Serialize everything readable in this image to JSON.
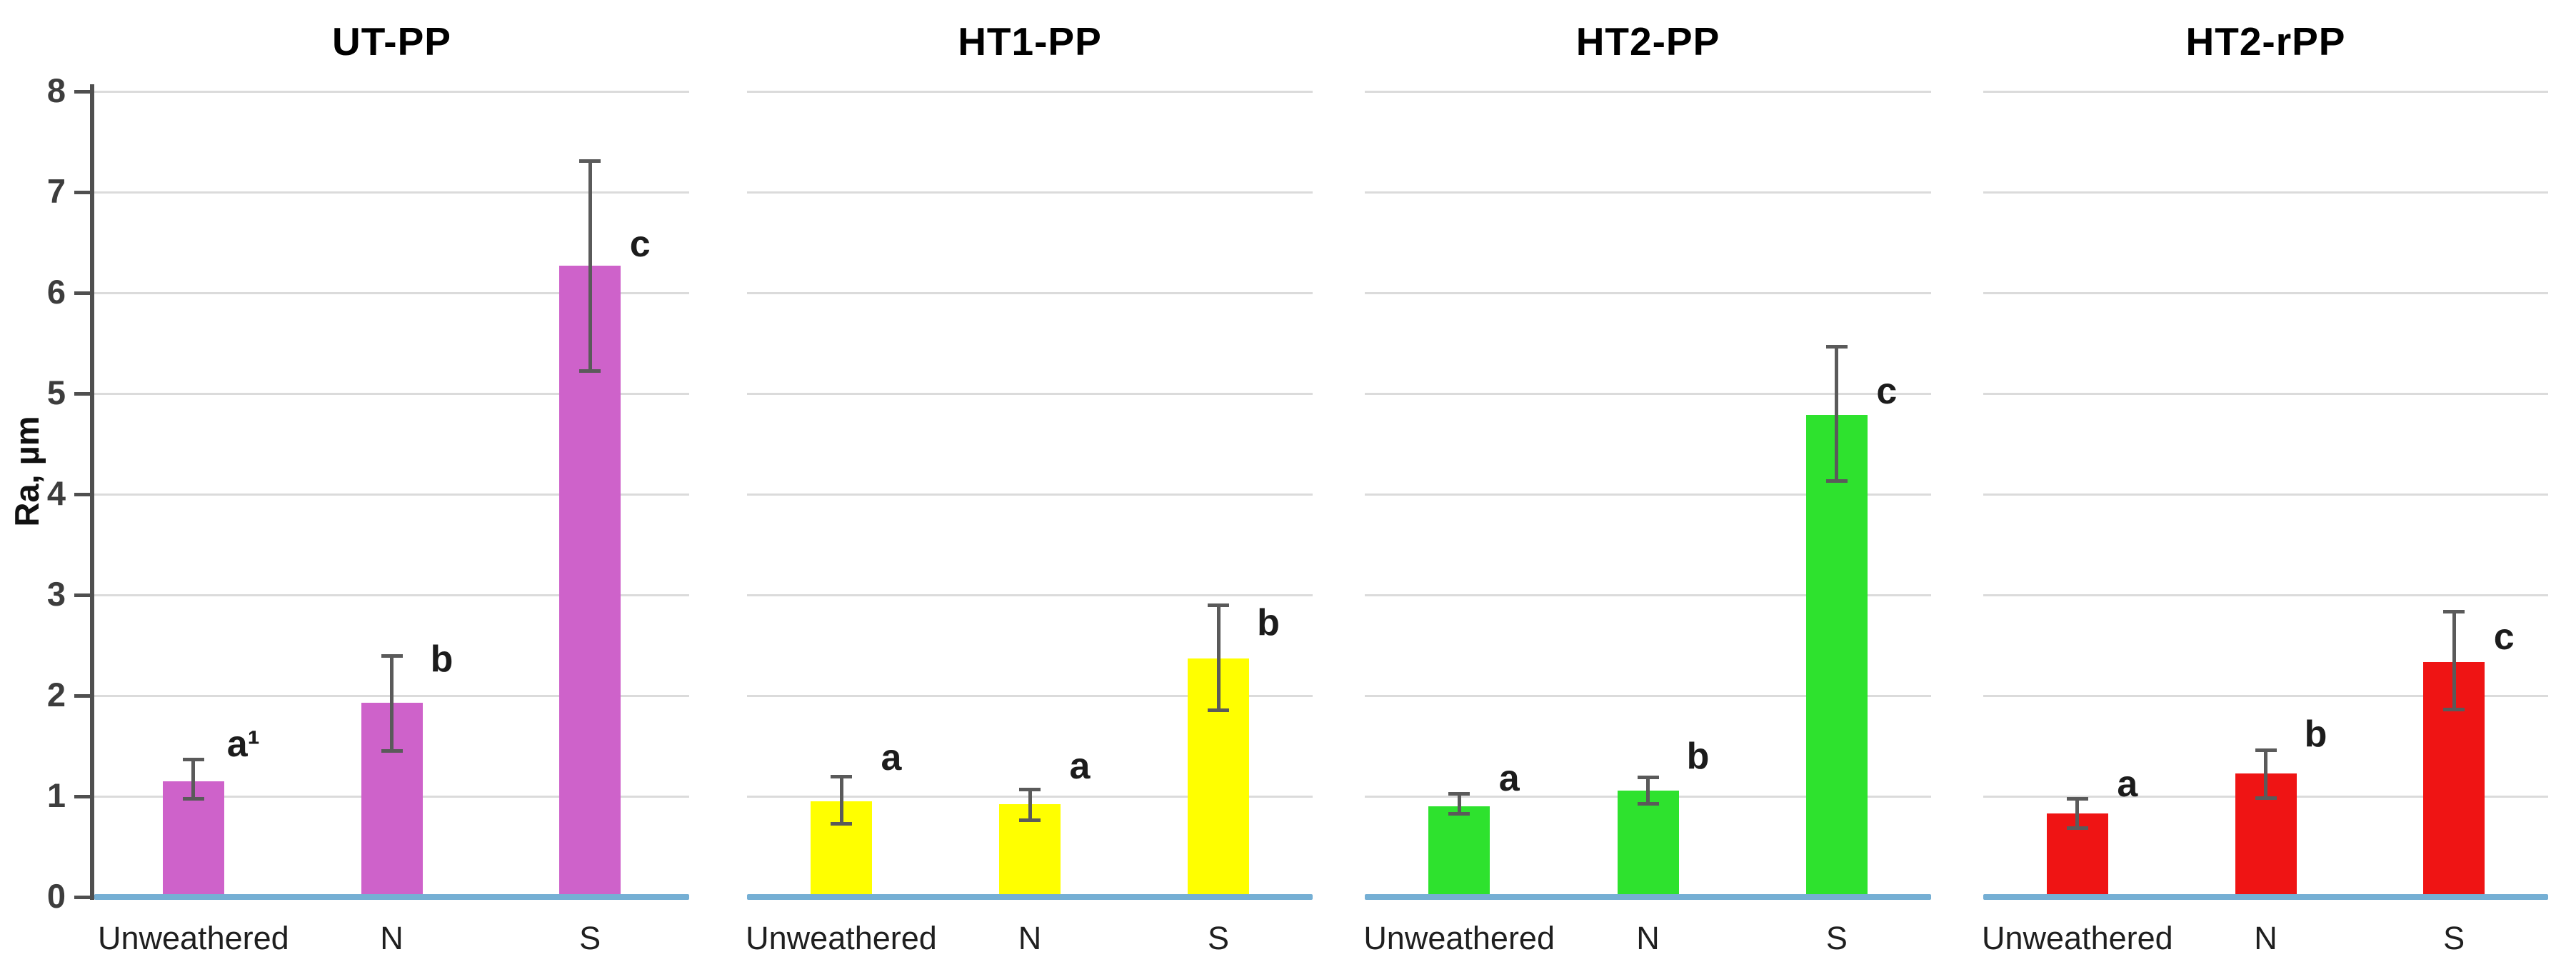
{
  "figure": {
    "background": "#ffffff",
    "description_visible_text_only": true
  },
  "chart_data": {
    "type": "bar",
    "ylabel": "Ra, µm",
    "ylim": [
      0,
      8
    ],
    "yticks": [
      0,
      1,
      2,
      3,
      4,
      5,
      6,
      7,
      8
    ],
    "grid": true,
    "legend_position": "none",
    "categories": [
      "Unweathered",
      "N",
      "S"
    ],
    "colors": {
      "gridline": "#DBDBDB",
      "axis": "#4F4F4F",
      "baseline": "#75AFD4",
      "error_bar": "#5A5A5A",
      "title_text": "#000000",
      "tick_text": "#3d3d3d",
      "category_text": "#1f1f1f",
      "letter_text": "#1c1c1c"
    },
    "panels": [
      {
        "title": "UT-PP",
        "bar_color": "#CE62CA",
        "bars": [
          {
            "category": "Unweathered",
            "value": 1.15,
            "err_low": 0.97,
            "err_high": 1.37,
            "letter": "a¹",
            "letter_y": 1.52
          },
          {
            "category": "N",
            "value": 1.93,
            "err_low": 1.45,
            "err_high": 2.4,
            "letter": "b",
            "letter_y": 2.36
          },
          {
            "category": "S",
            "value": 6.27,
            "err_low": 5.22,
            "err_high": 7.31,
            "letter": "c",
            "letter_y": 6.48
          }
        ]
      },
      {
        "title": "HT1-PP",
        "bar_color": "#FFFF00",
        "bars": [
          {
            "category": "Unweathered",
            "value": 0.95,
            "err_low": 0.72,
            "err_high": 1.2,
            "letter": "a",
            "letter_y": 1.38
          },
          {
            "category": "N",
            "value": 0.92,
            "err_low": 0.76,
            "err_high": 1.07,
            "letter": "a",
            "letter_y": 1.3
          },
          {
            "category": "S",
            "value": 2.37,
            "err_low": 1.85,
            "err_high": 2.9,
            "letter": "b",
            "letter_y": 2.72
          }
        ]
      },
      {
        "title": "HT2-PP",
        "bar_color": "#2EE22E",
        "bars": [
          {
            "category": "Unweathered",
            "value": 0.9,
            "err_low": 0.82,
            "err_high": 1.03,
            "letter": "a",
            "letter_y": 1.18
          },
          {
            "category": "N",
            "value": 1.06,
            "err_low": 0.92,
            "err_high": 1.19,
            "letter": "b",
            "letter_y": 1.4
          },
          {
            "category": "S",
            "value": 4.79,
            "err_low": 4.13,
            "err_high": 5.47,
            "letter": "c",
            "letter_y": 5.02
          }
        ]
      },
      {
        "title": "HT2-rPP",
        "bar_color": "#EF1414",
        "bars": [
          {
            "category": "Unweathered",
            "value": 0.83,
            "err_low": 0.68,
            "err_high": 0.98,
            "letter": "a",
            "letter_y": 1.12
          },
          {
            "category": "N",
            "value": 1.23,
            "err_low": 0.98,
            "err_high": 1.46,
            "letter": "b",
            "letter_y": 1.62
          },
          {
            "category": "S",
            "value": 2.33,
            "err_low": 1.86,
            "err_high": 2.84,
            "letter": "c",
            "letter_y": 2.58
          }
        ]
      }
    ]
  }
}
